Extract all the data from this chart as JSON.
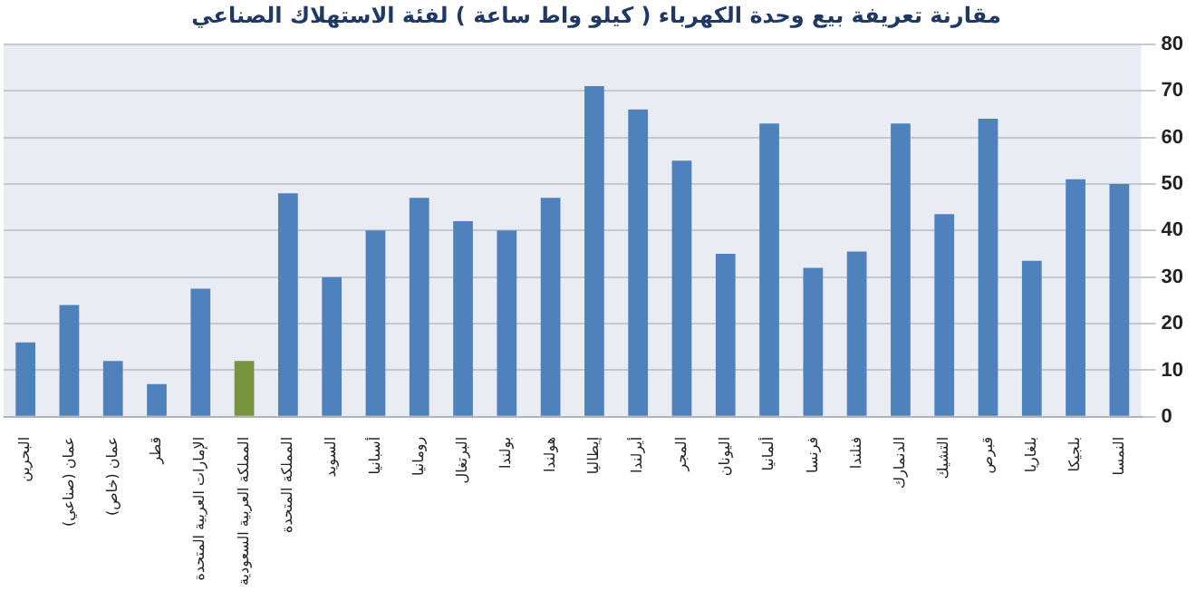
{
  "chart_data": {
    "type": "bar",
    "title": "مقارنة تعريفة بيع وحدة الكهرباء ( كيلو واط ساعة ) لفئة الاستهلاك الصناعي",
    "categories": [
      "البحرين",
      "عمان (صناعي)",
      "عمان (خاص)",
      "قطر",
      "الإمارات العربية المتحدة",
      "المملكة العربية السعودية",
      "المملكة المتحدة",
      "السويد",
      "أسبانيا",
      "رومانيا",
      "البرتغال",
      "بولندا",
      "هولندا",
      "إيطاليا",
      "أيرلندا",
      "المجر",
      "اليونان",
      "ألمانيا",
      "فرنسا",
      "فنلندا",
      "الدنمارك",
      "التشيك",
      "قبرص",
      "بلغاريا",
      "بلجيكا",
      "النمسا"
    ],
    "values": [
      16,
      24,
      12,
      7,
      27.5,
      12,
      48,
      30,
      40,
      47,
      42,
      40,
      47,
      71,
      66,
      55,
      35,
      63,
      32,
      35.5,
      63,
      43.5,
      64,
      33.5,
      51,
      50
    ],
    "colors": [
      "#4f81bd",
      "#4f81bd",
      "#4f81bd",
      "#4f81bd",
      "#4f81bd",
      "#77933c",
      "#4f81bd",
      "#4f81bd",
      "#4f81bd",
      "#4f81bd",
      "#4f81bd",
      "#4f81bd",
      "#4f81bd",
      "#4f81bd",
      "#4f81bd",
      "#4f81bd",
      "#4f81bd",
      "#4f81bd",
      "#4f81bd",
      "#4f81bd",
      "#4f81bd",
      "#4f81bd",
      "#4f81bd",
      "#4f81bd",
      "#4f81bd",
      "#4f81bd"
    ],
    "ylim": [
      0,
      80
    ],
    "yticks": [
      0,
      10,
      20,
      30,
      40,
      50,
      60,
      70,
      80
    ],
    "grid": "y",
    "legend": false
  }
}
